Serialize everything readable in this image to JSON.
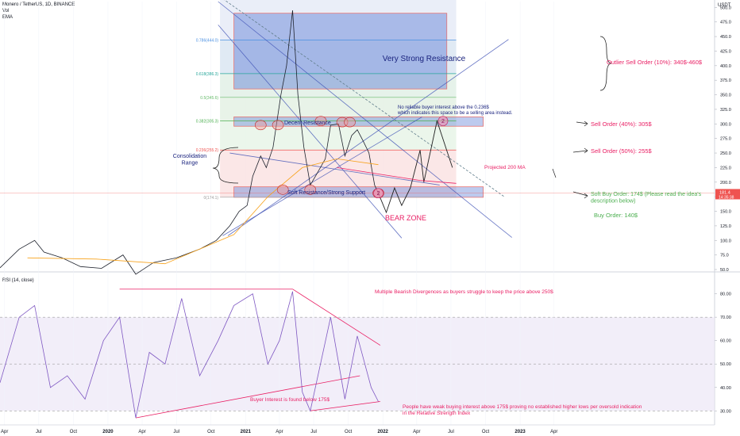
{
  "header": {
    "symbol_line": "Monero / TetherUS, 1D, BINANCE",
    "indicator_vol": "Vol",
    "indicator_ema": "EMA"
  },
  "rsi_header": "RSI (14, close)",
  "currency": "USDT",
  "colors": {
    "price_line": "#1e222d",
    "ma_line": "#f7a21b",
    "rsi_line": "#7e57c2",
    "resistance_fill": "#5b7bd5",
    "bear_fill": "#9e9e9e",
    "red_label": "#e91e63",
    "green_label": "#4caf50",
    "blue_label": "#2962ff"
  },
  "chart_data": [
    {
      "type": "line",
      "panel": "price",
      "ylim": [
        50,
        510
      ],
      "y_ticks": [
        50,
        75,
        100,
        125,
        150,
        175,
        200,
        225,
        250,
        275,
        300,
        325,
        350,
        375,
        400,
        425,
        450,
        475,
        500
      ],
      "y_tick_labels": [
        "50.0",
        "75.0",
        "100.0",
        "125.0",
        "150.0",
        "175.0",
        "200.0",
        "225.0",
        "250.0",
        "275.0",
        "300.0",
        "325.0",
        "350.0",
        "375.0",
        "400.0",
        "425.0",
        "450.0",
        "475.0",
        "500.0"
      ],
      "current_price_label": "181.4",
      "current_price_sub": "14:35:38",
      "current_price": 181.4,
      "x_range": [
        "2019-03-20",
        "2024-06-01"
      ],
      "series": [
        {
          "values_xy": [
            [
              "2019-03-20",
              53
            ],
            [
              "2019-05-10",
              85
            ],
            [
              "2019-06-20",
              100
            ],
            [
              "2019-07-15",
              80
            ],
            [
              "2019-09-01",
              70
            ],
            [
              "2019-10-20",
              55
            ],
            [
              "2019-12-15",
              52
            ],
            [
              "2020-02-10",
              75
            ],
            [
              "2020-03-15",
              42
            ],
            [
              "2020-05-01",
              62
            ],
            [
              "2020-07-01",
              70
            ],
            [
              "2020-09-01",
              85
            ],
            [
              "2020-10-15",
              100
            ],
            [
              "2020-11-20",
              125
            ],
            [
              "2020-12-15",
              150
            ],
            [
              "2021-01-05",
              160
            ],
            [
              "2021-01-20",
              210
            ],
            [
              "2021-02-10",
              245
            ],
            [
              "2021-02-25",
              225
            ],
            [
              "2021-03-15",
              260
            ],
            [
              "2021-04-05",
              350
            ],
            [
              "2021-04-20",
              400
            ],
            [
              "2021-05-06",
              495
            ],
            [
              "2021-05-20",
              350
            ],
            [
              "2021-06-05",
              260
            ],
            [
              "2021-06-22",
              195
            ],
            [
              "2021-07-10",
              215
            ],
            [
              "2021-08-01",
              240
            ],
            [
              "2021-08-15",
              298
            ],
            [
              "2021-09-05",
              300
            ],
            [
              "2021-09-22",
              245
            ],
            [
              "2021-10-10",
              280
            ],
            [
              "2021-10-25",
              290
            ],
            [
              "2021-11-10",
              270
            ],
            [
              "2021-11-25",
              250
            ],
            [
              "2021-12-10",
              195
            ],
            [
              "2021-12-20",
              181.4
            ]
          ]
        }
      ],
      "fib_levels": [
        {
          "label": "0.786(444.0)",
          "value": 444.0
        },
        {
          "label": "0.618(386.3)",
          "value": 386.3
        },
        {
          "label": "0.5(345.6)",
          "value": 345.6
        },
        {
          "label": "0.382(305.3)",
          "value": 305.3
        },
        {
          "label": "0.236(255.2)",
          "value": 255.2
        },
        {
          "label": "0(174.1)",
          "value": 174.1
        }
      ],
      "fib_top_value": 518,
      "zones": {
        "very_strong_resistance": {
          "label": "Very Strong Resistance",
          "from": 360,
          "to": 490
        },
        "decent_resistance": {
          "label": "Decent Resistance",
          "from": 296,
          "to": 312
        },
        "soft_support": {
          "label": "Soft Resistance/Strong Support",
          "from": 174,
          "to": 192
        },
        "bear_zone": {
          "label": "BEAR ZONE",
          "from": 100,
          "to": 174
        }
      },
      "annotations": {
        "consolidation": "Consolidation\nRange",
        "note": "No reliable buyer interest above the 0.236$\nwhich indicates this space to be a selling area instead.",
        "projected_ma": "Projected 200 MA",
        "outlier_sell": "Outlier Sell Order (10%): 340$-460$",
        "sell_40": "Sell Order (40%): 305$",
        "sell_50": "Sell Order (50%): 255$",
        "soft_buy": "Soft Buy Order: 174$ (Please read the idea's\ndescription below)",
        "buy": "Buy Order: 140$",
        "marker_2": "2"
      }
    },
    {
      "type": "line",
      "panel": "rsi",
      "ylim": [
        24,
        88
      ],
      "y_ticks": [
        30,
        40,
        50,
        60,
        70,
        80
      ],
      "y_tick_labels": [
        "30.00",
        "40.00",
        "50.00",
        "60.00",
        "70.00",
        "80.00"
      ],
      "band": [
        30,
        70
      ],
      "midline": 50,
      "series": [
        {
          "values_xy": [
            [
              "2019-03-20",
              42
            ],
            [
              "2019-05-10",
              70
            ],
            [
              "2019-06-20",
              75
            ],
            [
              "2019-08-01",
              40
            ],
            [
              "2019-09-15",
              45
            ],
            [
              "2019-11-01",
              35
            ],
            [
              "2019-12-20",
              60
            ],
            [
              "2020-02-01",
              70
            ],
            [
              "2020-03-15",
              27
            ],
            [
              "2020-04-20",
              55
            ],
            [
              "2020-06-01",
              50
            ],
            [
              "2020-07-15",
              78
            ],
            [
              "2020-09-01",
              45
            ],
            [
              "2020-10-20",
              60
            ],
            [
              "2020-12-01",
              75
            ],
            [
              "2021-01-20",
              80
            ],
            [
              "2021-03-01",
              50
            ],
            [
              "2021-04-01",
              60
            ],
            [
              "2021-05-06",
              81
            ],
            [
              "2021-06-01",
              38
            ],
            [
              "2021-06-22",
              30
            ],
            [
              "2021-08-15",
              70
            ],
            [
              "2021-09-22",
              35
            ],
            [
              "2021-10-25",
              62
            ],
            [
              "2021-12-01",
              40
            ],
            [
              "2021-12-20",
              34
            ]
          ]
        }
      ],
      "annotations": {
        "divergence": "Multiple Bearish Divergences as buyers struggle to keep the price above 250$",
        "buyer_interest": "Buyer Interest is found below 175$",
        "weak_buying": "People have weak buying interest above 175$ proving no established higher lows per oversold indication\nin the Relative Strength Index"
      }
    }
  ],
  "x_axis_ticks": [
    {
      "date": "2019-04-01",
      "label": "Apr",
      "bold": false
    },
    {
      "date": "2019-07-01",
      "label": "Jul",
      "bold": false
    },
    {
      "date": "2019-10-01",
      "label": "Oct",
      "bold": false
    },
    {
      "date": "2020-01-01",
      "label": "2020",
      "bold": true
    },
    {
      "date": "2020-04-01",
      "label": "Apr",
      "bold": false
    },
    {
      "date": "2020-07-01",
      "label": "Jul",
      "bold": false
    },
    {
      "date": "2020-10-01",
      "label": "Oct",
      "bold": false
    },
    {
      "date": "2021-01-01",
      "label": "2021",
      "bold": true
    },
    {
      "date": "2021-04-01",
      "label": "Apr",
      "bold": false
    },
    {
      "date": "2021-07-01",
      "label": "Jul",
      "bold": false
    },
    {
      "date": "2021-10-01",
      "label": "Oct",
      "bold": false
    },
    {
      "date": "2022-01-01",
      "label": "2022",
      "bold": true
    },
    {
      "date": "2022-04-01",
      "label": "Apr",
      "bold": false
    },
    {
      "date": "2022-07-01",
      "label": "Jul",
      "bold": false
    },
    {
      "date": "2022-10-01",
      "label": "Oct",
      "bold": false
    },
    {
      "date": "2023-01-01",
      "label": "2023",
      "bold": true
    },
    {
      "date": "2023-04-01",
      "label": "Apr",
      "bold": false
    }
  ]
}
